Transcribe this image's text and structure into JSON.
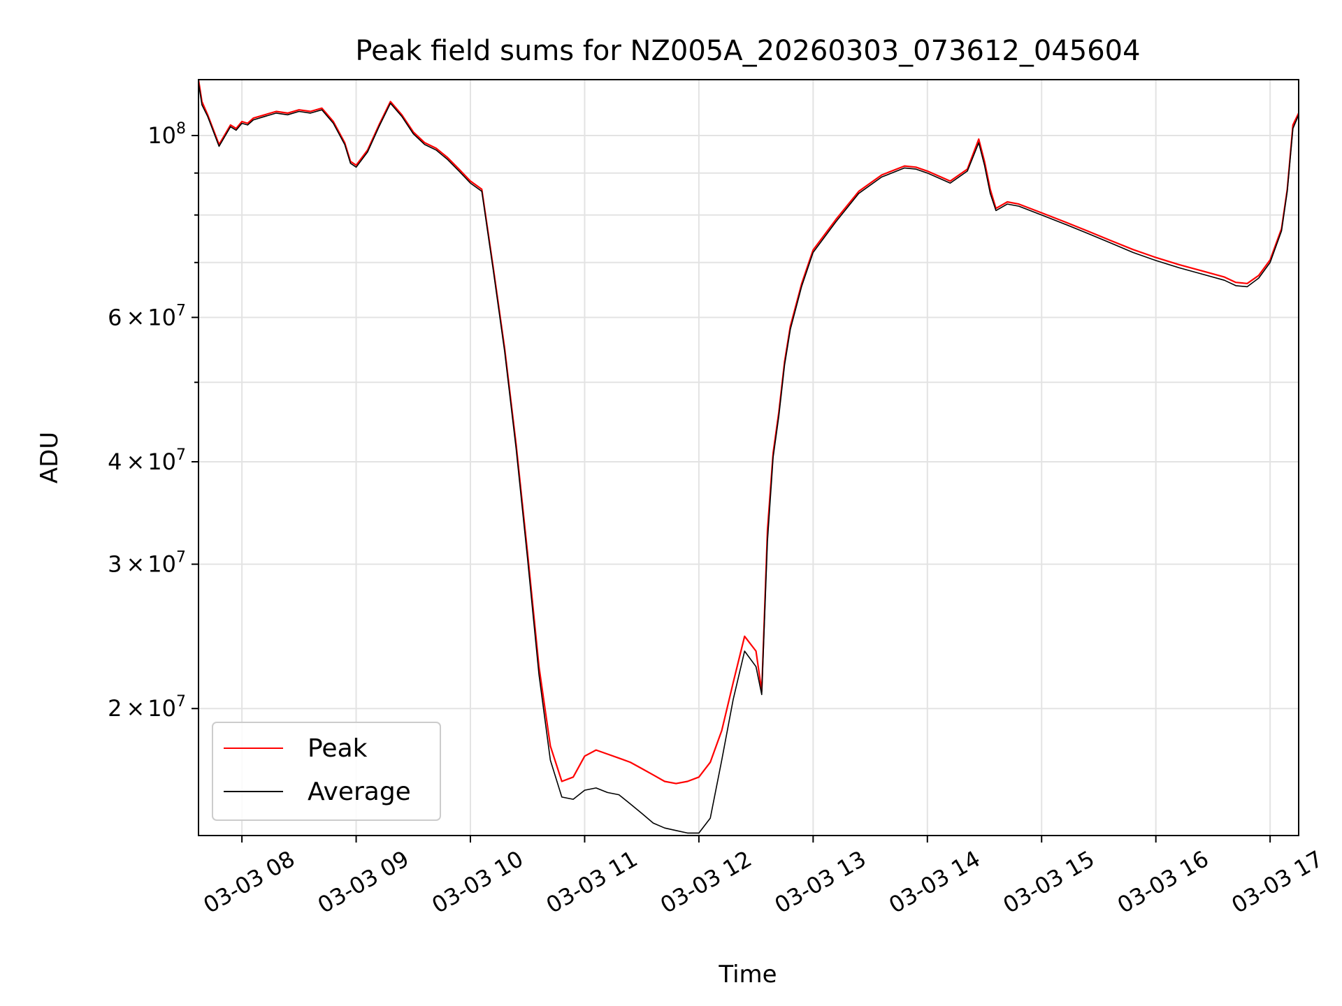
{
  "chart_data": {
    "type": "line",
    "title": "Peak field sums for NZ005A_20260303_073612_045604",
    "xlabel": "Time",
    "ylabel": "ADU",
    "y_scale": "log",
    "grid": true,
    "legend_position": "lower-left",
    "x_unit": "hours since 03-03 00:00",
    "xlim": [
      7.62,
      17.25
    ],
    "ylim": [
      14000000,
      117000000
    ],
    "x_ticks": [
      {
        "value": 8,
        "label": "03-03 08"
      },
      {
        "value": 9,
        "label": "03-03 09"
      },
      {
        "value": 10,
        "label": "03-03 10"
      },
      {
        "value": 11,
        "label": "03-03 11"
      },
      {
        "value": 12,
        "label": "03-03 12"
      },
      {
        "value": 13,
        "label": "03-03 13"
      },
      {
        "value": 14,
        "label": "03-03 14"
      },
      {
        "value": 15,
        "label": "03-03 15"
      },
      {
        "value": 16,
        "label": "03-03 16"
      },
      {
        "value": 17,
        "label": "03-03 17"
      }
    ],
    "y_ticks": [
      {
        "value": 20000000,
        "mantissa": "2",
        "base": "10",
        "exp": "7"
      },
      {
        "value": 30000000,
        "mantissa": "3",
        "base": "10",
        "exp": "7"
      },
      {
        "value": 40000000,
        "mantissa": "4",
        "base": "10",
        "exp": "7"
      },
      {
        "value": 60000000,
        "mantissa": "6",
        "base": "10",
        "exp": "7"
      },
      {
        "value": 100000000,
        "mantissa": "",
        "base": "10",
        "exp": "8"
      }
    ],
    "y_minor_ticks": [
      50000000,
      70000000,
      80000000,
      90000000
    ],
    "series": [
      {
        "name": "Peak",
        "color": "#ff0000",
        "x": [
          7.62,
          7.65,
          7.7,
          7.8,
          7.9,
          7.95,
          8.0,
          8.05,
          8.1,
          8.2,
          8.3,
          8.4,
          8.5,
          8.6,
          8.7,
          8.8,
          8.9,
          8.95,
          9.0,
          9.1,
          9.2,
          9.3,
          9.4,
          9.5,
          9.6,
          9.7,
          9.8,
          9.9,
          10.0,
          10.1,
          10.2,
          10.3,
          10.4,
          10.5,
          10.6,
          10.7,
          10.8,
          10.9,
          11.0,
          11.1,
          11.2,
          11.3,
          11.4,
          11.5,
          11.6,
          11.7,
          11.8,
          11.9,
          12.0,
          12.1,
          12.2,
          12.3,
          12.4,
          12.5,
          12.55,
          12.6,
          12.65,
          12.7,
          12.75,
          12.8,
          12.9,
          13.0,
          13.2,
          13.4,
          13.6,
          13.8,
          13.9,
          14.0,
          14.2,
          14.35,
          14.45,
          14.5,
          14.55,
          14.6,
          14.7,
          14.8,
          15.0,
          15.2,
          15.4,
          15.6,
          15.8,
          16.0,
          16.2,
          16.4,
          16.6,
          16.7,
          16.8,
          16.9,
          17.0,
          17.1,
          17.15,
          17.2,
          17.25
        ],
        "y": [
          117000000,
          110000000,
          106000000,
          97500000,
          103000000,
          102000000,
          104000000,
          103500000,
          105000000,
          106000000,
          107000000,
          106500000,
          107500000,
          107000000,
          108000000,
          104000000,
          98000000,
          93000000,
          92000000,
          96000000,
          103000000,
          110000000,
          106000000,
          101000000,
          98000000,
          96500000,
          94000000,
          91000000,
          88000000,
          86000000,
          69000000,
          55000000,
          42000000,
          31000000,
          22500000,
          18000000,
          16300000,
          16500000,
          17500000,
          17800000,
          17600000,
          17400000,
          17200000,
          16900000,
          16600000,
          16300000,
          16200000,
          16300000,
          16500000,
          17200000,
          18800000,
          21500000,
          24500000,
          23500000,
          21000000,
          33000000,
          41000000,
          46000000,
          53000000,
          58500000,
          66000000,
          72500000,
          79000000,
          85500000,
          89500000,
          91800000,
          91500000,
          90500000,
          88000000,
          91000000,
          99000000,
          93000000,
          86000000,
          81500000,
          83000000,
          82500000,
          80500000,
          78500000,
          76500000,
          74500000,
          72600000,
          71000000,
          69600000,
          68400000,
          67200000,
          66200000,
          66000000,
          67500000,
          70500000,
          77000000,
          86000000,
          103000000,
          106500000
        ]
      },
      {
        "name": "Average",
        "color": "#000000",
        "x": [
          7.62,
          7.65,
          7.7,
          7.8,
          7.9,
          7.95,
          8.0,
          8.05,
          8.1,
          8.2,
          8.3,
          8.4,
          8.5,
          8.6,
          8.7,
          8.8,
          8.9,
          8.95,
          9.0,
          9.1,
          9.2,
          9.3,
          9.4,
          9.5,
          9.6,
          9.7,
          9.8,
          9.9,
          10.0,
          10.1,
          10.2,
          10.3,
          10.4,
          10.5,
          10.6,
          10.7,
          10.8,
          10.9,
          11.0,
          11.1,
          11.2,
          11.3,
          11.4,
          11.5,
          11.6,
          11.7,
          11.8,
          11.9,
          12.0,
          12.1,
          12.2,
          12.3,
          12.4,
          12.5,
          12.55,
          12.6,
          12.65,
          12.7,
          12.75,
          12.8,
          12.9,
          13.0,
          13.2,
          13.4,
          13.6,
          13.8,
          13.9,
          14.0,
          14.2,
          14.35,
          14.45,
          14.5,
          14.55,
          14.6,
          14.7,
          14.8,
          15.0,
          15.2,
          15.4,
          15.6,
          15.8,
          16.0,
          16.2,
          16.4,
          16.6,
          16.7,
          16.8,
          16.9,
          17.0,
          17.1,
          17.15,
          17.2,
          17.25
        ],
        "y": [
          116000000,
          109000000,
          105500000,
          97000000,
          102500000,
          101500000,
          103500000,
          103000000,
          104500000,
          105500000,
          106500000,
          106000000,
          107000000,
          106500000,
          107500000,
          103500000,
          97500000,
          92500000,
          91500000,
          95500000,
          102500000,
          109500000,
          105500000,
          100500000,
          97500000,
          96000000,
          93500000,
          90500000,
          87500000,
          85500000,
          68500000,
          54500000,
          41500000,
          30500000,
          22000000,
          17300000,
          15600000,
          15500000,
          15900000,
          16000000,
          15800000,
          15700000,
          15300000,
          14900000,
          14500000,
          14300000,
          14200000,
          14100000,
          14100000,
          14700000,
          17300000,
          20500000,
          23500000,
          22500000,
          20800000,
          32000000,
          40500000,
          45500000,
          52500000,
          58000000,
          65500000,
          72000000,
          78500000,
          85000000,
          89000000,
          91300000,
          91000000,
          90000000,
          87500000,
          90500000,
          98000000,
          92000000,
          85000000,
          81000000,
          82500000,
          82000000,
          80000000,
          78000000,
          76000000,
          74000000,
          72000000,
          70400000,
          69000000,
          67800000,
          66600000,
          65600000,
          65400000,
          67000000,
          70000000,
          76500000,
          85500000,
          102000000,
          106000000
        ]
      }
    ]
  }
}
